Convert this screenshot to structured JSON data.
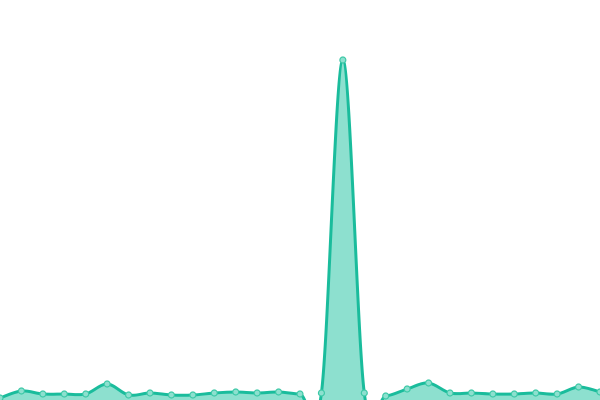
{
  "chart_data": {
    "type": "area",
    "title": "",
    "xlabel": "",
    "ylabel": "",
    "x": [
      0,
      1,
      2,
      3,
      4,
      5,
      6,
      7,
      8,
      9,
      10,
      11,
      12,
      13,
      14,
      15,
      16,
      17,
      18,
      19,
      20,
      21,
      22,
      23,
      24,
      25,
      26,
      27,
      28
    ],
    "values": [
      2,
      9,
      6,
      6,
      6,
      16,
      5,
      7,
      5,
      5,
      7,
      8,
      7,
      8,
      6,
      7,
      340,
      7,
      4,
      11,
      17,
      7,
      7,
      6,
      6,
      7,
      6,
      13,
      8
    ],
    "ylim": [
      0,
      400
    ],
    "grid": false,
    "smooth": true,
    "markers": true,
    "colors": {
      "line": "#1abc9c",
      "fill": "#8de0cf",
      "marker_fill": "#8de0cf",
      "marker_stroke": "#3cc8a6"
    }
  }
}
